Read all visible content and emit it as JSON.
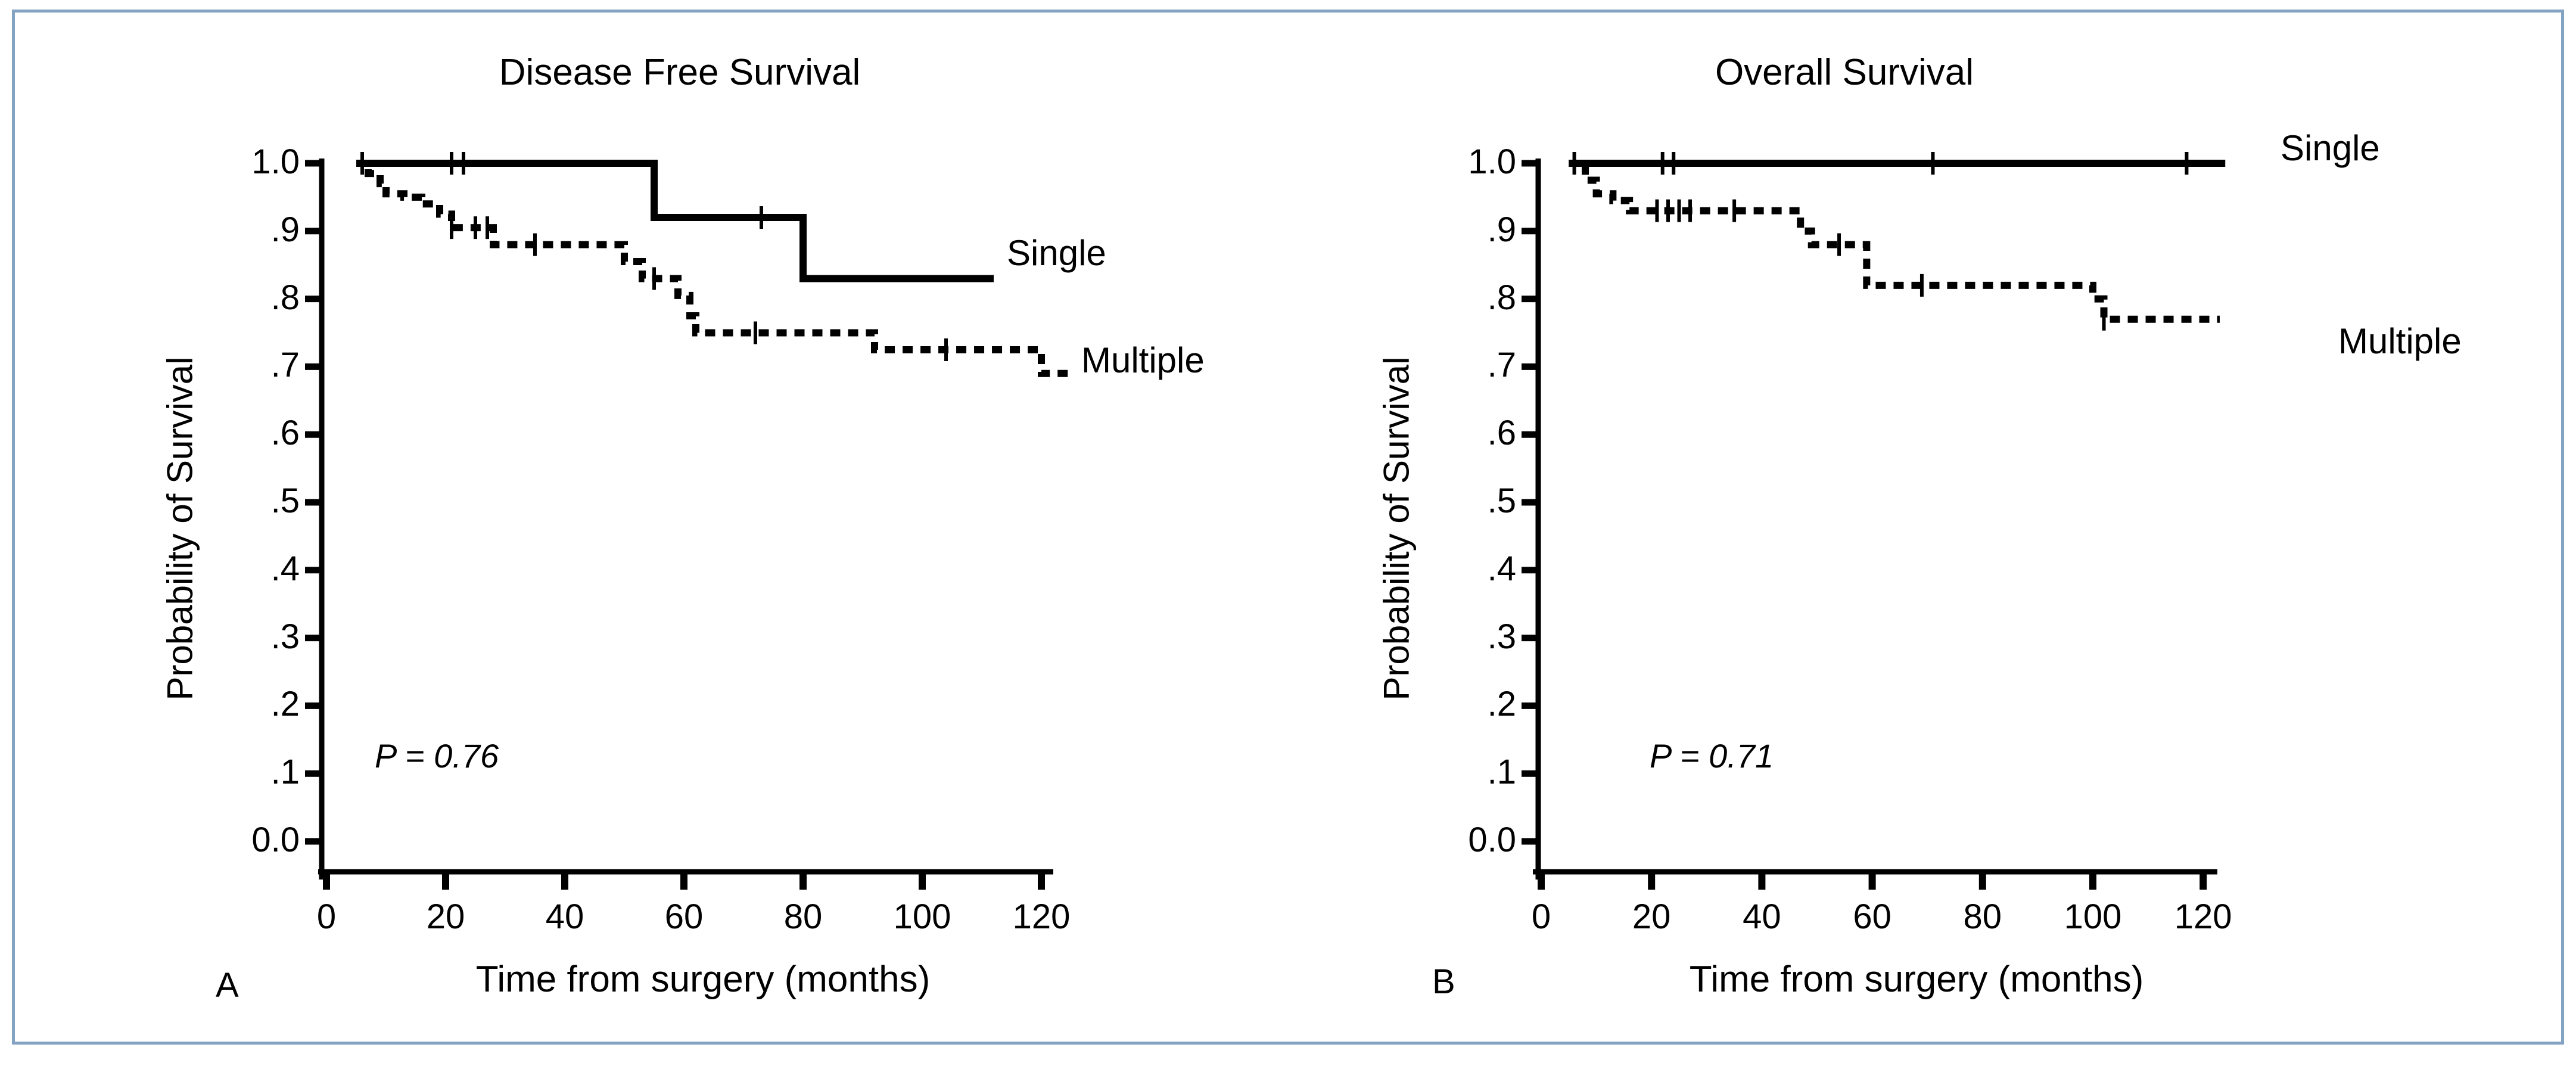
{
  "figure": {
    "border_color": "#84a2c2",
    "curve_color": "#000000",
    "panels": [
      {
        "letter": "A",
        "title": "Disease Free Survival",
        "ylabel": "Probability of Survival",
        "xlabel": "Time from surgery (months)",
        "p_value": "P = 0.76",
        "single_label": "Single",
        "multiple_label": "Multiple"
      },
      {
        "letter": "B",
        "title": "Overall Survival",
        "ylabel": "Probability of Survival",
        "xlabel": "Time from surgery (months)",
        "p_value": "P = 0.71",
        "single_label": "Single",
        "multiple_label": "Multiple"
      }
    ]
  },
  "chart_data": [
    {
      "type": "line",
      "subtype": "kaplan-meier-step",
      "panel": "A",
      "title": "Disease Free Survival",
      "xlabel": "Time from surgery (months)",
      "ylabel": "Probability of Survival",
      "annotation": "P = 0.76",
      "xlim": [
        0,
        128
      ],
      "ylim": [
        0.0,
        1.0
      ],
      "xticks": [
        0,
        20,
        40,
        60,
        80,
        100,
        120
      ],
      "ytick_values": [
        0.0,
        0.1,
        0.2,
        0.3,
        0.4,
        0.5,
        0.6,
        0.7,
        0.8,
        0.9,
        1.0
      ],
      "ytick_labels": [
        "0.0",
        ".1",
        ".2",
        ".3",
        ".4",
        ".5",
        ".6",
        ".7",
        ".8",
        ".9",
        "1.0"
      ],
      "grid": false,
      "legend_position": "right-inline",
      "series": [
        {
          "name": "Multiple",
          "style": "dashed",
          "points": [
            [
              5,
              1.0
            ],
            [
              7,
              0.985
            ],
            [
              9,
              0.97
            ],
            [
              10,
              0.955
            ],
            [
              13,
              0.95
            ],
            [
              16,
              0.94
            ],
            [
              19,
              0.925
            ],
            [
              21,
              0.905
            ],
            [
              28,
              0.88
            ],
            [
              50,
              0.855
            ],
            [
              53,
              0.83
            ],
            [
              59,
              0.805
            ],
            [
              61,
              0.775
            ],
            [
              62,
              0.75
            ],
            [
              92,
              0.725
            ],
            [
              120,
              0.69
            ]
          ],
          "end": 125,
          "censors": [
            [
              21,
              0.905
            ],
            [
              25,
              0.905
            ],
            [
              27,
              0.905
            ],
            [
              35,
              0.88
            ],
            [
              55,
              0.83
            ],
            [
              72,
              0.75
            ],
            [
              104,
              0.725
            ]
          ]
        },
        {
          "name": "Single",
          "style": "solid",
          "points": [
            [
              5,
              1.0
            ],
            [
              55,
              0.92
            ],
            [
              80,
              0.83
            ]
          ],
          "end": 112,
          "censors": [
            [
              6,
              1.0
            ],
            [
              21,
              1.0
            ],
            [
              23,
              1.0
            ],
            [
              73,
              0.92
            ]
          ]
        }
      ]
    },
    {
      "type": "line",
      "subtype": "kaplan-meier-step",
      "panel": "B",
      "title": "Overall Survival",
      "xlabel": "Time from surgery (months)",
      "ylabel": "Probability of Survival",
      "annotation": "P = 0.71",
      "xlim": [
        0,
        128
      ],
      "ylim": [
        0.0,
        1.0
      ],
      "xticks": [
        0,
        20,
        40,
        60,
        80,
        100,
        120
      ],
      "ytick_values": [
        0.0,
        0.1,
        0.2,
        0.3,
        0.4,
        0.5,
        0.6,
        0.7,
        0.8,
        0.9,
        1.0
      ],
      "ytick_labels": [
        "0.0",
        ".1",
        ".2",
        ".3",
        ".4",
        ".5",
        ".6",
        ".7",
        ".8",
        ".9",
        "1.0"
      ],
      "grid": false,
      "legend_position": "right-inline",
      "series": [
        {
          "name": "Multiple",
          "style": "dashed",
          "points": [
            [
              5,
              1.0
            ],
            [
              8,
              0.975
            ],
            [
              10,
              0.955
            ],
            [
              13,
              0.945
            ],
            [
              16,
              0.93
            ],
            [
              47,
              0.9
            ],
            [
              49,
              0.88
            ],
            [
              59,
              0.82
            ],
            [
              100,
              0.8
            ],
            [
              102,
              0.77
            ]
          ],
          "end": 123,
          "censors": [
            [
              21,
              0.93
            ],
            [
              23,
              0.93
            ],
            [
              25,
              0.93
            ],
            [
              27,
              0.93
            ],
            [
              35,
              0.93
            ],
            [
              54,
              0.88
            ],
            [
              69,
              0.82
            ],
            [
              102,
              0.77
            ]
          ]
        },
        {
          "name": "Single",
          "style": "solid",
          "points": [
            [
              5,
              1.0
            ]
          ],
          "end": 124,
          "censors": [
            [
              6,
              1.0
            ],
            [
              22,
              1.0
            ],
            [
              24,
              1.0
            ],
            [
              71,
              1.0
            ],
            [
              117,
              1.0
            ]
          ]
        }
      ]
    }
  ]
}
